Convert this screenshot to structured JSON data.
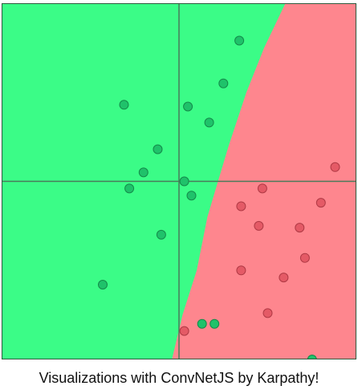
{
  "caption": "Visualizations with ConvNetJS by Karpathy!",
  "colors": {
    "class_a_region": "#3bfc87",
    "class_b_region": "#fe868e",
    "class_a_point": "#1fc26a",
    "class_b_point": "#e45a66",
    "axis": "#4a7a5a"
  },
  "chart_data": {
    "type": "scatter",
    "title": "",
    "xlabel": "",
    "ylabel": "",
    "xlim": [
      -1,
      1
    ],
    "ylim": [
      -1,
      1
    ],
    "grid": false,
    "axes_lines_at_origin": true,
    "decision_boundary": {
      "description_free": true,
      "points": [
        [
          0.6,
          1.0
        ],
        [
          0.48,
          0.75
        ],
        [
          0.38,
          0.5
        ],
        [
          0.28,
          0.2
        ],
        [
          0.22,
          0.0
        ],
        [
          0.16,
          -0.2
        ],
        [
          0.1,
          -0.5
        ],
        [
          0.02,
          -0.75
        ],
        [
          -0.04,
          -1.0
        ]
      ]
    },
    "series": [
      {
        "class": "a",
        "points": [
          [
            0.34,
            0.79
          ],
          [
            0.25,
            0.55
          ],
          [
            -0.31,
            0.43
          ],
          [
            0.05,
            0.42
          ],
          [
            0.17,
            0.33
          ],
          [
            -0.12,
            0.18
          ],
          [
            -0.2,
            0.05
          ],
          [
            0.03,
            0.0
          ],
          [
            -0.28,
            -0.04
          ],
          [
            0.07,
            -0.08
          ],
          [
            -0.1,
            -0.3
          ],
          [
            -0.43,
            -0.58
          ],
          [
            0.13,
            -0.8
          ],
          [
            0.2,
            -0.8
          ],
          [
            0.75,
            -1.0
          ]
        ]
      },
      {
        "class": "b",
        "points": [
          [
            0.88,
            0.08
          ],
          [
            0.47,
            -0.04
          ],
          [
            0.8,
            -0.12
          ],
          [
            0.35,
            -0.14
          ],
          [
            0.45,
            -0.25
          ],
          [
            0.68,
            -0.26
          ],
          [
            0.71,
            -0.43
          ],
          [
            0.35,
            -0.5
          ],
          [
            0.59,
            -0.54
          ],
          [
            0.5,
            -0.74
          ],
          [
            0.03,
            -0.84
          ]
        ]
      }
    ]
  }
}
